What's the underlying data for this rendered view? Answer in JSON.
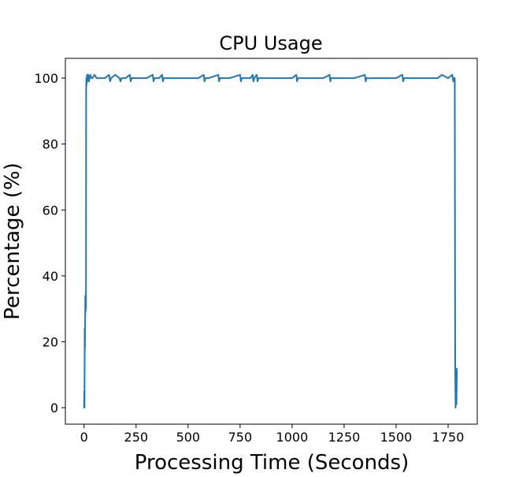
{
  "chart_data": {
    "type": "line",
    "title": "CPU Usage",
    "xlabel": "Processing Time (Seconds)",
    "ylabel": "Percentage (%)",
    "xlim": [
      -90,
      1890
    ],
    "ylim": [
      -5,
      106
    ],
    "xticks": [
      0,
      250,
      500,
      750,
      1000,
      1250,
      1500,
      1750
    ],
    "yticks": [
      0,
      20,
      40,
      60,
      80,
      100
    ],
    "grid": false,
    "legend": "none",
    "series_color": "#1f77b4",
    "series": [
      {
        "x": [
          0,
          1,
          2,
          3,
          4,
          5,
          6,
          7,
          8,
          9,
          10,
          11,
          12,
          14,
          16,
          18,
          20,
          22,
          24,
          26,
          30,
          35,
          40,
          50,
          60,
          70,
          100,
          120,
          125,
          130,
          150,
          170,
          175,
          180,
          200,
          220,
          224,
          228,
          250,
          300,
          330,
          334,
          338,
          360,
          375,
          379,
          383,
          400,
          450,
          500,
          550,
          575,
          579,
          583,
          600,
          645,
          649,
          653,
          700,
          750,
          754,
          758,
          800,
          810,
          814,
          818,
          830,
          834,
          838,
          900,
          950,
          1000,
          1020,
          1024,
          1028,
          1100,
          1150,
          1180,
          1184,
          1188,
          1200,
          1250,
          1300,
          1350,
          1354,
          1358,
          1400,
          1450,
          1500,
          1530,
          1534,
          1538,
          1600,
          1650,
          1700,
          1720,
          1750,
          1770,
          1775,
          1780,
          1782,
          1784,
          1786,
          1788,
          1790,
          1792
        ],
        "y": [
          0,
          5,
          0,
          24,
          18,
          25,
          34,
          29,
          33,
          30,
          97,
          100,
          98,
          101,
          99,
          100,
          101,
          100,
          99,
          100,
          101,
          100,
          100,
          101,
          100,
          100,
          100,
          101,
          99,
          100,
          101,
          100,
          99,
          100,
          100,
          101,
          99,
          100,
          100,
          100,
          101,
          99,
          100,
          100,
          101,
          99,
          100,
          100,
          100,
          100,
          100,
          101,
          99,
          100,
          100,
          101,
          99,
          100,
          100,
          101,
          99,
          100,
          100,
          101,
          99,
          100,
          101,
          99,
          100,
          100,
          100,
          100,
          101,
          99,
          100,
          100,
          100,
          101,
          99,
          100,
          100,
          100,
          100,
          101,
          99,
          100,
          100,
          100,
          100,
          101,
          99,
          100,
          100,
          100,
          100,
          101,
          100,
          101,
          99,
          100,
          100,
          12,
          0,
          10,
          1,
          12
        ]
      }
    ]
  }
}
